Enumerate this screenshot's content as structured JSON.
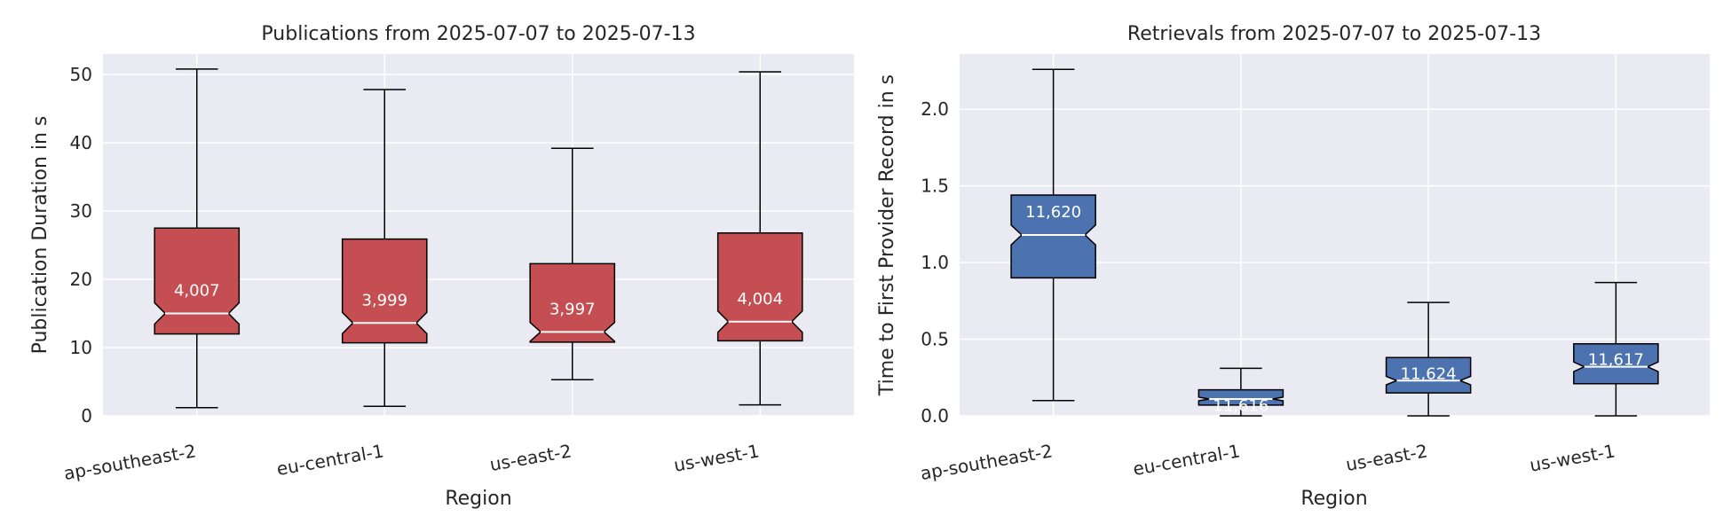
{
  "chart_data": [
    {
      "type": "boxplot",
      "title": "Publications from 2025-07-07 to 2025-07-13",
      "xlabel": "Region",
      "ylabel": "Publication Duration in s",
      "ylim": [
        0,
        53
      ],
      "yticks": [
        "0",
        "10",
        "20",
        "30",
        "40",
        "50"
      ],
      "notched": true,
      "grid": true,
      "colors": {
        "box": "#c44e52",
        "median": "#ffffff",
        "background": "#eaeaf2"
      },
      "categories": [
        "ap-southeast-2",
        "eu-central-1",
        "us-east-2",
        "us-west-1"
      ],
      "boxes": [
        {
          "whisker_low": 1.2,
          "q1": 12.0,
          "median": 15.0,
          "q3": 27.5,
          "whisker_high": 50.8,
          "count": "4,007"
        },
        {
          "whisker_low": 1.4,
          "q1": 10.7,
          "median": 13.6,
          "q3": 25.9,
          "whisker_high": 47.8,
          "count": "3,999"
        },
        {
          "whisker_low": 5.3,
          "q1": 10.8,
          "median": 12.3,
          "q3": 22.3,
          "whisker_high": 39.2,
          "count": "3,997"
        },
        {
          "whisker_low": 1.6,
          "q1": 11.0,
          "median": 13.8,
          "q3": 26.8,
          "whisker_high": 50.4,
          "count": "4,004"
        }
      ]
    },
    {
      "type": "boxplot",
      "title": "Retrievals from 2025-07-07 to 2025-07-13",
      "xlabel": "Region",
      "ylabel": "Time to First Provider Record in s",
      "ylim": [
        0,
        2.36
      ],
      "yticks": [
        "0.0",
        "0.5",
        "1.0",
        "1.5",
        "2.0"
      ],
      "notched": true,
      "grid": true,
      "colors": {
        "box": "#4c72b0",
        "median": "#ffffff",
        "background": "#eaeaf2"
      },
      "categories": [
        "ap-southeast-2",
        "eu-central-1",
        "us-east-2",
        "us-west-1"
      ],
      "boxes": [
        {
          "whisker_low": 0.1,
          "q1": 0.9,
          "median": 1.18,
          "q3": 1.44,
          "whisker_high": 2.26,
          "count": "11,620"
        },
        {
          "whisker_low": 0.0,
          "q1": 0.07,
          "median": 0.11,
          "q3": 0.17,
          "whisker_high": 0.31,
          "count": "11,616"
        },
        {
          "whisker_low": 0.0,
          "q1": 0.15,
          "median": 0.23,
          "q3": 0.38,
          "whisker_high": 0.74,
          "count": "11,624"
        },
        {
          "whisker_low": 0.0,
          "q1": 0.21,
          "median": 0.32,
          "q3": 0.47,
          "whisker_high": 0.87,
          "count": "11,617"
        }
      ]
    }
  ]
}
